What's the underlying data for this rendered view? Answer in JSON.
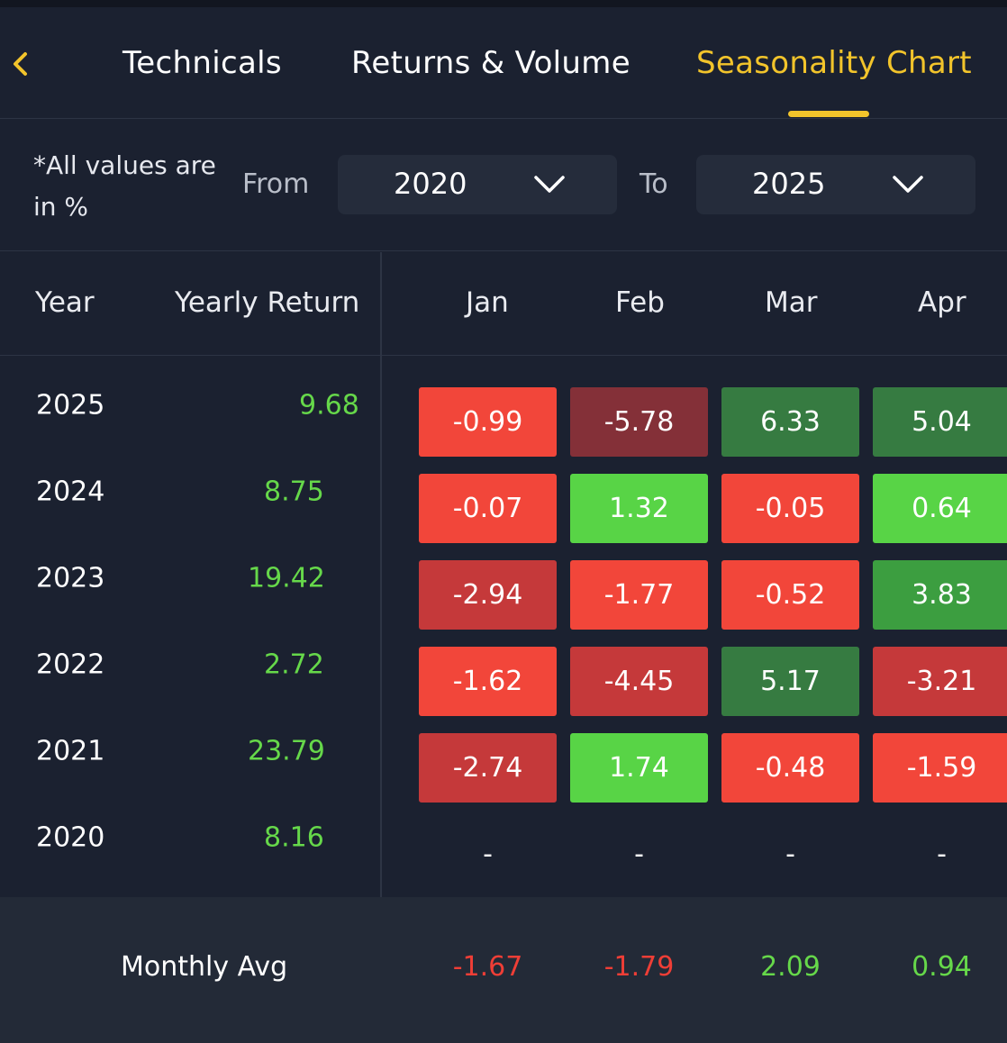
{
  "tabs": {
    "items": [
      "Technicals",
      "Returns & Volume",
      "Seasonality Chart"
    ],
    "active": "Seasonality Chart"
  },
  "filters": {
    "note_line1": "*All values are",
    "note_line2": "in %",
    "from_label": "From",
    "from_value": "2020",
    "to_label": "To",
    "to_value": "2025"
  },
  "table": {
    "headers": {
      "year": "Year",
      "yearly_return": "Yearly Return",
      "months": [
        "Jan",
        "Feb",
        "Mar",
        "Apr"
      ]
    },
    "rows": [
      {
        "year": "2025",
        "yearly_return": "9.68",
        "months": [
          "-0.99",
          "-5.78",
          "6.33",
          "5.04"
        ]
      },
      {
        "year": "2024",
        "yearly_return": "8.75",
        "months": [
          "-0.07",
          "1.32",
          "-0.05",
          "0.64"
        ]
      },
      {
        "year": "2023",
        "yearly_return": "19.42",
        "months": [
          "-2.94",
          "-1.77",
          "-0.52",
          "3.83"
        ]
      },
      {
        "year": "2022",
        "yearly_return": "2.72",
        "months": [
          "-1.62",
          "-4.45",
          "5.17",
          "-3.21"
        ]
      },
      {
        "year": "2021",
        "yearly_return": "23.79",
        "months": [
          "-2.74",
          "1.74",
          "-0.48",
          "-1.59"
        ]
      },
      {
        "year": "2020",
        "yearly_return": "8.16",
        "months": [
          "-",
          "-",
          "-",
          "-"
        ]
      }
    ],
    "monthly_avg": {
      "label": "Monthly Avg",
      "values": [
        "-1.67",
        "-1.79",
        "2.09",
        "0.94"
      ]
    }
  },
  "colors": {
    "accent": "#f2c42b",
    "positive_text": "#66d84a",
    "negative_text": "#ef3e36",
    "cell_red_light": "#f2463a",
    "cell_red_dark": "#c5393a",
    "cell_red_darker": "#843038",
    "cell_green_light": "#58d446",
    "cell_green_mid": "#3c9e40",
    "cell_green_dark": "#367b41"
  }
}
